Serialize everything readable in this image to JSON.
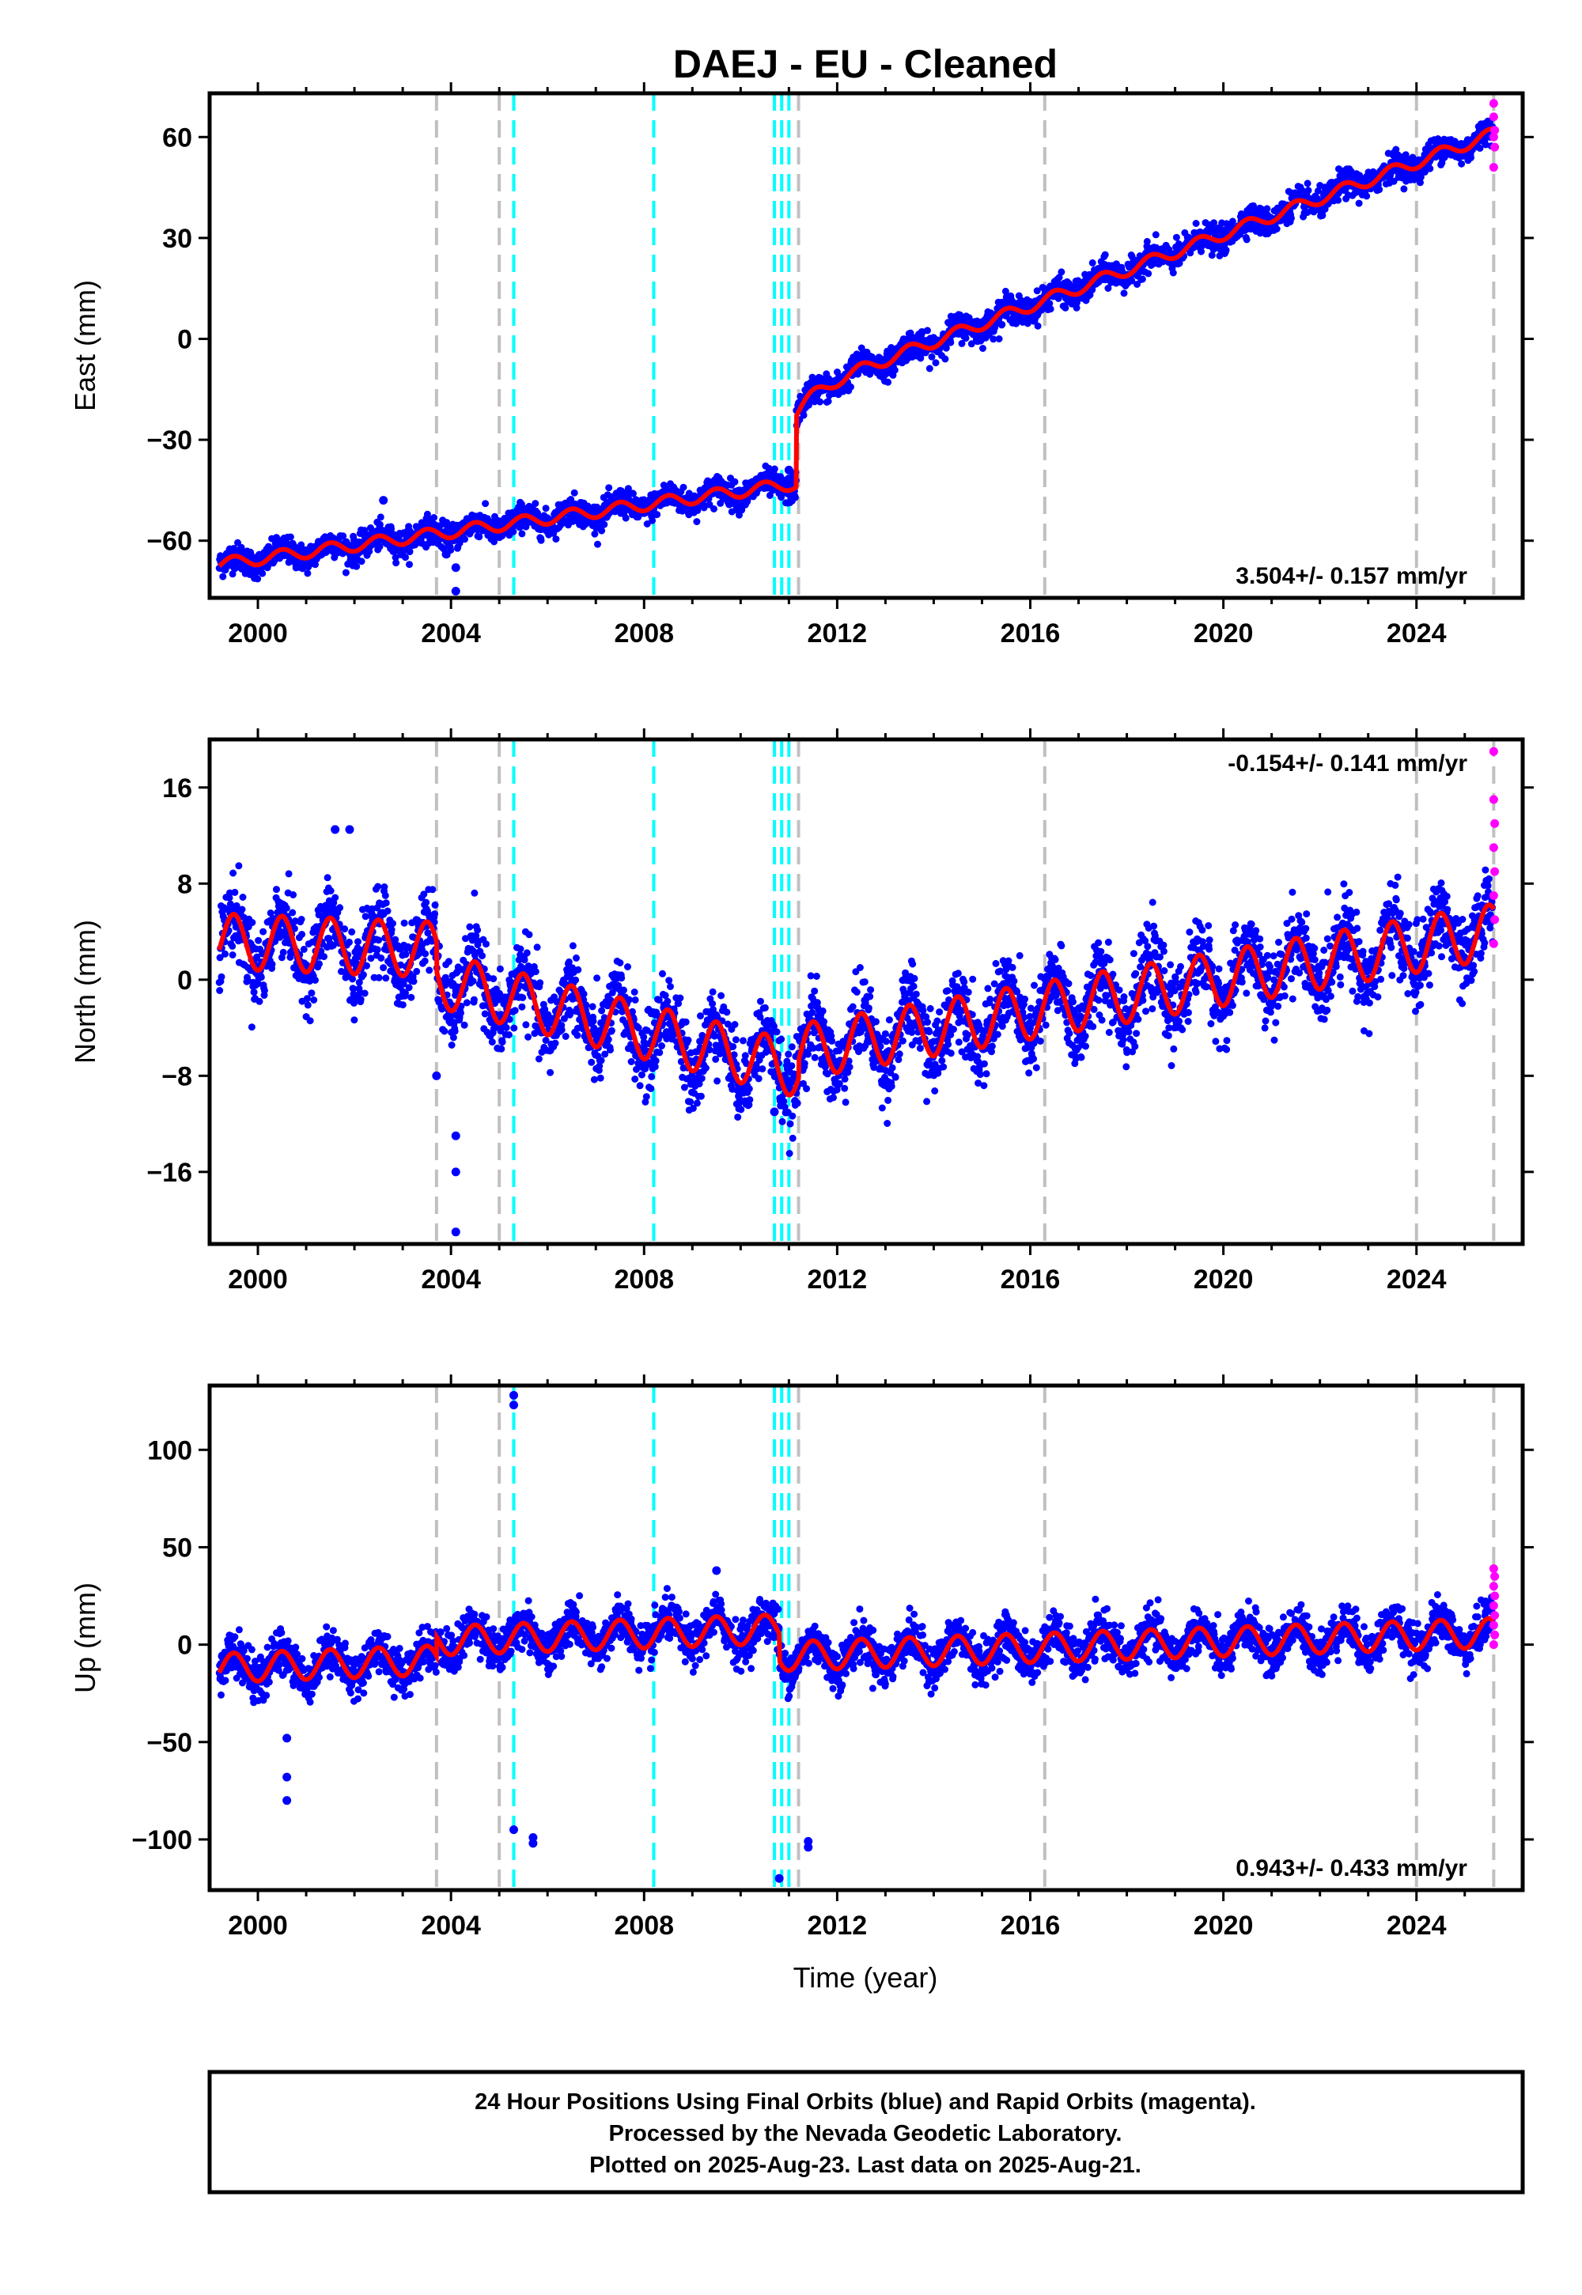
{
  "title": "DAEJ  - EU - Cleaned",
  "xlabel": "Time (year)",
  "colors": {
    "final": "#0000ff",
    "rapid": "#ff00ff",
    "model": "#ff0000",
    "break_equipment": "#c0c0c0",
    "break_earthquake": "#00ffff"
  },
  "footer": {
    "line1": "24 Hour Positions Using Final Orbits (blue) and Rapid Orbits (magenta).",
    "line2": "Processed by the Nevada Geodetic Laboratory.",
    "line3": "Plotted on 2025-Aug-23. Last data on 2025-Aug-21."
  },
  "chart_data": [
    {
      "type": "scatter",
      "component": "east",
      "ylabel": "East (mm)",
      "rate_label": "3.504+/- 0.157 mm/yr",
      "rate_position": "bottom-right",
      "xlim": [
        1999.0,
        2026.2
      ],
      "ylim": [
        -77,
        73
      ],
      "xticks": [
        2000,
        2004,
        2008,
        2012,
        2016,
        2020,
        2024
      ],
      "yticks": [
        -60,
        -30,
        0,
        30,
        60
      ],
      "xtick_labels": [
        "2000",
        "2004",
        "2008",
        "2012",
        "2016",
        "2020",
        "2024"
      ],
      "ytick_labels": [
        "−60",
        "−30",
        "0",
        "30",
        "60"
      ],
      "break_lines_gray": [
        2003.7,
        2005.0,
        2011.2,
        2016.3,
        2024.0,
        2025.6
      ],
      "break_lines_cyan": [
        2005.3,
        2008.2,
        2010.7,
        2010.85,
        2011.0
      ],
      "trend_before": {
        "start": 1999.2,
        "end": 2011.15,
        "y0": -67,
        "y1": -43
      },
      "trend_after": {
        "start": 2011.15,
        "end": 2025.6,
        "y0": -16,
        "y1": 61
      },
      "offset_after": {
        "start": 2011.15,
        "end": 2012.2,
        "extra": -6,
        "tau": 0.45
      },
      "annual_amplitude": 1.8,
      "scatter": 2.0,
      "outliers": [
        [
          2003.9,
          -64
        ],
        [
          2004.1,
          -68
        ],
        [
          2004.1,
          -75
        ],
        [
          2002.6,
          -48
        ],
        [
          2011.0,
          -39
        ]
      ],
      "rapid_points": [
        [
          2025.6,
          70
        ],
        [
          2025.6,
          66
        ],
        [
          2025.62,
          62
        ],
        [
          2025.6,
          60
        ],
        [
          2025.62,
          57
        ],
        [
          2025.6,
          51
        ]
      ]
    },
    {
      "type": "scatter",
      "component": "north",
      "ylabel": "North (mm)",
      "rate_label": "-0.154+/- 0.141 mm/yr",
      "rate_position": "top-right",
      "xlim": [
        1999.0,
        2026.2
      ],
      "ylim": [
        -22,
        20
      ],
      "xticks": [
        2000,
        2004,
        2008,
        2012,
        2016,
        2020,
        2024
      ],
      "yticks": [
        -16,
        -8,
        0,
        8,
        16
      ],
      "xtick_labels": [
        "2000",
        "2004",
        "2008",
        "2012",
        "2016",
        "2020",
        "2024"
      ],
      "ytick_labels": [
        "−16",
        "−8",
        "0",
        "8",
        "16"
      ],
      "break_lines_gray": [
        2003.7,
        2005.0,
        2011.2,
        2016.3,
        2024.0,
        2025.6
      ],
      "break_lines_cyan": [
        2005.3,
        2008.2,
        2010.7,
        2010.85,
        2011.0
      ],
      "trend_segments": [
        {
          "start": 1999.2,
          "end": 2003.7,
          "y0": 3.2,
          "y1": 2.5
        },
        {
          "start": 2003.7,
          "end": 2011.2,
          "y0": 0.0,
          "y1": -7.5
        },
        {
          "start": 2011.2,
          "end": 2025.6,
          "y0": -6.0,
          "y1": 4.0
        }
      ],
      "annual_amplitude": 2.3,
      "scatter": 1.6,
      "outliers": [
        [
          2001.6,
          12.5
        ],
        [
          2001.9,
          12.5
        ],
        [
          2004.1,
          -13
        ],
        [
          2004.1,
          -16
        ],
        [
          2004.1,
          -21
        ],
        [
          2003.7,
          -8
        ],
        [
          2010.7,
          -11
        ]
      ],
      "rapid_points": [
        [
          2025.6,
          19
        ],
        [
          2025.6,
          15
        ],
        [
          2025.62,
          13
        ],
        [
          2025.6,
          11
        ],
        [
          2025.62,
          9
        ],
        [
          2025.6,
          7
        ],
        [
          2025.62,
          5
        ],
        [
          2025.6,
          3
        ]
      ]
    },
    {
      "type": "scatter",
      "component": "up",
      "ylabel": "Up (mm)",
      "rate_label": "0.943+/- 0.433 mm/yr",
      "rate_position": "bottom-right",
      "xlim": [
        1999.0,
        2026.2
      ],
      "ylim": [
        -126,
        133
      ],
      "xticks": [
        2000,
        2004,
        2008,
        2012,
        2016,
        2020,
        2024
      ],
      "yticks": [
        -100,
        -50,
        0,
        50,
        100
      ],
      "xtick_labels": [
        "2000",
        "2004",
        "2008",
        "2012",
        "2016",
        "2020",
        "2024"
      ],
      "ytick_labels": [
        "−100",
        "−50",
        "0",
        "50",
        "100"
      ],
      "break_lines_gray": [
        2003.7,
        2005.0,
        2011.2,
        2016.3,
        2024.0,
        2025.6
      ],
      "break_lines_cyan": [
        2005.3,
        2008.2,
        2010.7,
        2010.85,
        2011.0
      ],
      "trend_segments": [
        {
          "start": 1999.2,
          "end": 2003.7,
          "y0": -12,
          "y1": -8
        },
        {
          "start": 2003.7,
          "end": 2010.8,
          "y0": 2,
          "y1": 8
        },
        {
          "start": 2010.8,
          "end": 2025.6,
          "y0": -6,
          "y1": 6
        }
      ],
      "annual_amplitude": 7.5,
      "scatter": 5.5,
      "outliers": [
        [
          2000.6,
          -48
        ],
        [
          2000.6,
          -68
        ],
        [
          2000.6,
          -80
        ],
        [
          2005.3,
          128
        ],
        [
          2005.3,
          123
        ],
        [
          2005.3,
          -95
        ],
        [
          2005.7,
          -99
        ],
        [
          2005.7,
          -102
        ],
        [
          2009.5,
          38
        ],
        [
          2010.8,
          -120
        ],
        [
          2011.4,
          -101
        ],
        [
          2011.4,
          -104
        ]
      ],
      "rapid_points": [
        [
          2025.6,
          39
        ],
        [
          2025.62,
          35
        ],
        [
          2025.6,
          30
        ],
        [
          2025.62,
          25
        ],
        [
          2025.6,
          20
        ],
        [
          2025.62,
          15
        ],
        [
          2025.6,
          10
        ],
        [
          2025.62,
          5
        ],
        [
          2025.6,
          0
        ]
      ]
    }
  ]
}
